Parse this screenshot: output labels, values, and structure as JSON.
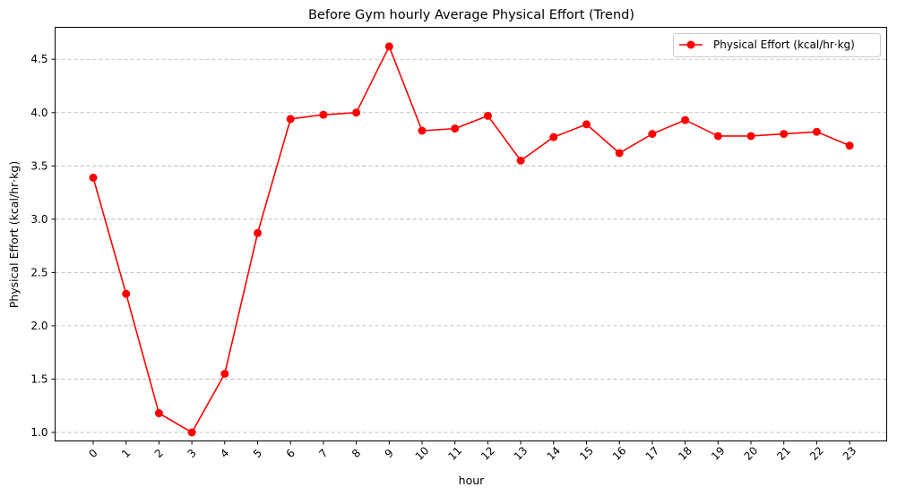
{
  "chart_data": {
    "type": "line",
    "title": "Before Gym hourly Average Physical Effort (Trend)",
    "xlabel": "hour",
    "ylabel": "Physical Effort (kcal/hr·kg)",
    "categories": [
      "0",
      "1",
      "2",
      "3",
      "4",
      "5",
      "6",
      "7",
      "8",
      "9",
      "10",
      "11",
      "12",
      "13",
      "14",
      "15",
      "16",
      "17",
      "18",
      "19",
      "20",
      "21",
      "22",
      "23"
    ],
    "series": [
      {
        "name": "Physical Effort (kcal/hr·kg)",
        "color": "#ff0000",
        "marker": "circle",
        "values": [
          3.39,
          2.3,
          1.18,
          1.0,
          1.55,
          2.87,
          3.94,
          3.98,
          4.0,
          4.62,
          3.83,
          3.85,
          3.97,
          3.55,
          3.77,
          3.89,
          3.62,
          3.8,
          3.93,
          3.78,
          3.78,
          3.8,
          3.82,
          3.69
        ]
      }
    ],
    "yticks": [
      "1.0",
      "1.5",
      "2.0",
      "2.5",
      "3.0",
      "3.5",
      "4.0",
      "4.5"
    ],
    "ylim": [
      0.92,
      4.8
    ],
    "grid": "y-dashed",
    "legend_position": "top-right"
  }
}
